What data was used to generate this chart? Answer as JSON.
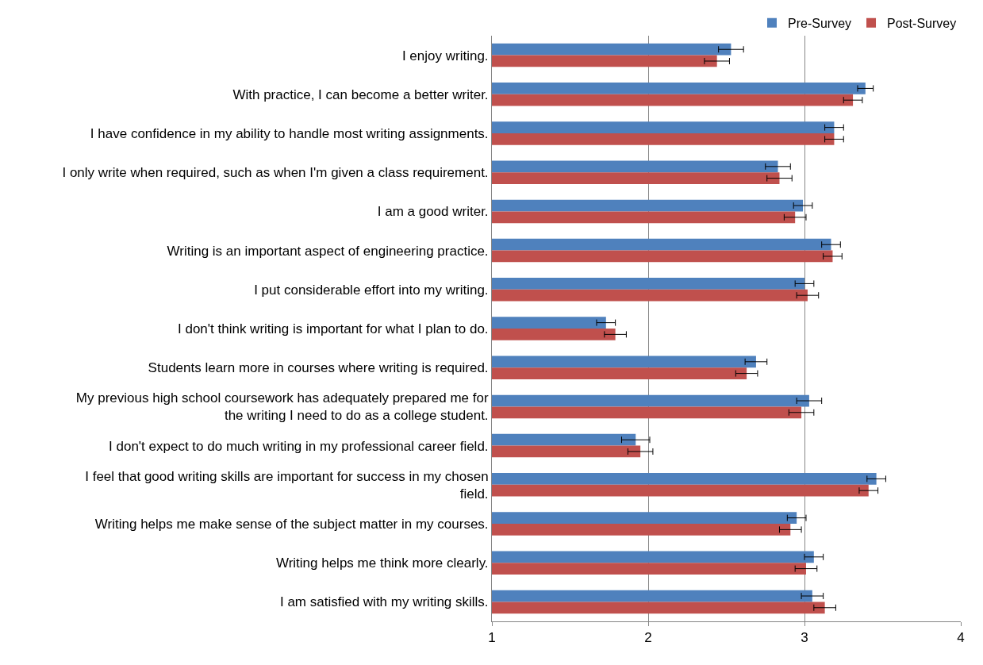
{
  "chart_data": {
    "type": "bar",
    "orientation": "horizontal",
    "categories": [
      "I enjoy writing.",
      "With practice, I can become a better writer.",
      "I have confidence in my ability to handle most writing assignments.",
      "I only write when required, such as when I'm given a class requirement.",
      "I am a good writer.",
      "Writing is an important aspect of engineering practice.",
      "I put considerable effort into my writing.",
      "I don't think writing is important for what I plan to do.",
      "Students learn more in courses where writing is required.",
      "My previous high school coursework has adequately prepared me for\nthe writing I need to do as a college student.",
      "I don't expect to do much writing in my professional career field.",
      "I feel that good writing skills are important for success in my chosen\nfield.",
      "Writing helps me make sense of the subject matter in my courses.",
      "Writing helps me think more clearly.",
      "I am satisfied with my writing skills."
    ],
    "series": [
      {
        "name": "Pre-Survey",
        "color": "#4f81bd",
        "values": [
          2.53,
          3.39,
          3.19,
          2.83,
          2.99,
          3.17,
          3.0,
          1.73,
          2.69,
          3.03,
          1.92,
          3.46,
          2.95,
          3.06,
          3.05
        ],
        "errors": [
          0.08,
          0.05,
          0.06,
          0.08,
          0.06,
          0.06,
          0.06,
          0.06,
          0.07,
          0.08,
          0.09,
          0.06,
          0.06,
          0.06,
          0.07
        ]
      },
      {
        "name": "Post-Survey",
        "color": "#c0504d",
        "values": [
          2.44,
          3.31,
          3.19,
          2.84,
          2.94,
          3.18,
          3.02,
          1.79,
          2.63,
          2.98,
          1.95,
          3.41,
          2.91,
          3.01,
          3.13
        ],
        "errors": [
          0.08,
          0.06,
          0.06,
          0.08,
          0.07,
          0.06,
          0.07,
          0.07,
          0.07,
          0.08,
          0.08,
          0.06,
          0.07,
          0.07,
          0.07
        ]
      }
    ],
    "xlim": [
      1,
      4
    ],
    "xticks": [
      1,
      2,
      3,
      4
    ],
    "grid": "x",
    "legend": "top right"
  }
}
